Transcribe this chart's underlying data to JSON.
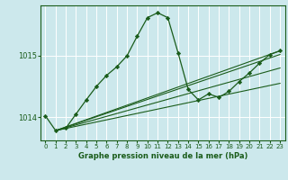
{
  "bg_color": "#cce8ec",
  "grid_color": "#ffffff",
  "line_color": "#1a5c1a",
  "marker_color": "#1a5c1a",
  "xlabel": "Graphe pression niveau de la mer (hPa)",
  "ylabel_ticks": [
    1014,
    1015
  ],
  "xlim": [
    -0.5,
    23.5
  ],
  "ylim": [
    1013.62,
    1015.82
  ],
  "xticks": [
    0,
    1,
    2,
    3,
    4,
    5,
    6,
    7,
    8,
    9,
    10,
    11,
    12,
    13,
    14,
    15,
    16,
    17,
    18,
    19,
    20,
    21,
    22,
    23
  ],
  "main_series": {
    "x": [
      0,
      1,
      2,
      3,
      4,
      5,
      6,
      7,
      8,
      9,
      10,
      11,
      12,
      13,
      14,
      15,
      16,
      17,
      18,
      19,
      20,
      21,
      22,
      23
    ],
    "y": [
      1014.02,
      1013.78,
      1013.82,
      1014.05,
      1014.28,
      1014.5,
      1014.68,
      1014.82,
      1015.0,
      1015.32,
      1015.62,
      1015.7,
      1015.62,
      1015.05,
      1014.45,
      1014.28,
      1014.38,
      1014.32,
      1014.42,
      1014.58,
      1014.72,
      1014.88,
      1015.02,
      1015.08
    ]
  },
  "trend_lines": [
    {
      "x": [
        1,
        23
      ],
      "y": [
        1013.78,
        1015.08
      ]
    },
    {
      "x": [
        1,
        23
      ],
      "y": [
        1013.78,
        1015.02
      ]
    },
    {
      "x": [
        1,
        23
      ],
      "y": [
        1013.78,
        1014.8
      ]
    },
    {
      "x": [
        1,
        23
      ],
      "y": [
        1013.78,
        1014.55
      ]
    }
  ]
}
